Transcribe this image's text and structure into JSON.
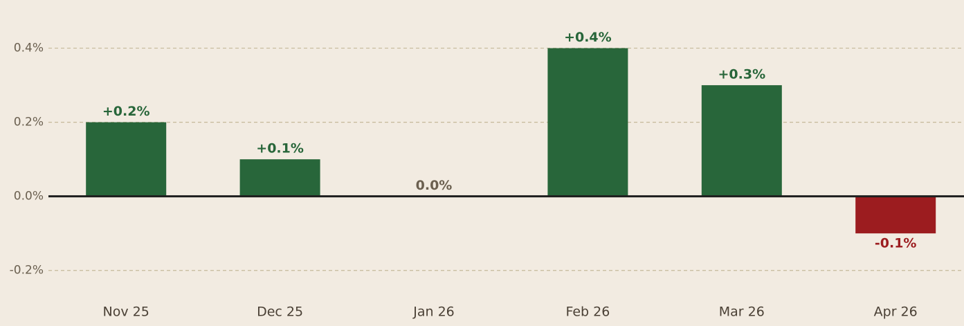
{
  "chart_data": {
    "type": "bar",
    "categories": [
      "Nov 25",
      "Dec 25",
      "Jan 26",
      "Feb 26",
      "Mar 26",
      "Apr 26"
    ],
    "values": [
      0.2,
      0.1,
      0.0,
      0.4,
      0.3,
      -0.1
    ],
    "value_labels": [
      "+0.2%",
      "+0.1%",
      "0.0%",
      "+0.4%",
      "+0.3%",
      "-0.1%"
    ],
    "colors": [
      "#28663a",
      "#28663a",
      "#6b6050",
      "#28663a",
      "#28663a",
      "#9c1c1f"
    ],
    "ylim": [
      -0.35,
      0.53
    ],
    "yticks": [
      {
        "value": -0.2,
        "label": "-0.2%"
      },
      {
        "value": 0.0,
        "label": "0.0%"
      },
      {
        "value": 0.2,
        "label": "0.2%"
      },
      {
        "value": 0.4,
        "label": "0.4%"
      }
    ],
    "grid": true
  }
}
